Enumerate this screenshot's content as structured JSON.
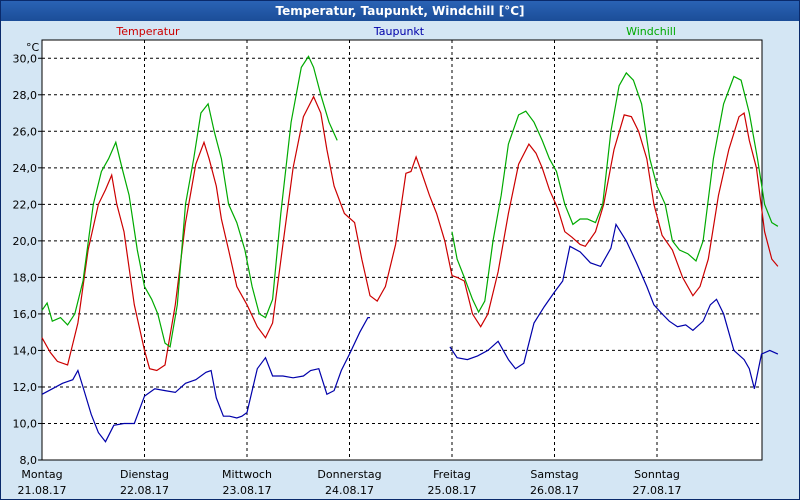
{
  "window": {
    "title": "Temperatur, Taupunkt, Windchill [°C]"
  },
  "chart_data": {
    "type": "line",
    "title": "Temperatur, Taupunkt, Windchill [°C]",
    "ylabel": "°C",
    "ylim": [
      8,
      31
    ],
    "xlim": [
      0,
      7
    ],
    "grid": true,
    "legend_position": "top",
    "yticks": [
      "8,0",
      "10,0",
      "12,0",
      "14,0",
      "16,0",
      "18,0",
      "20,0",
      "22,0",
      "24,0",
      "26,0",
      "28,0",
      "30,0"
    ],
    "xticks": [
      {
        "day": "Montag",
        "date": "21.08.17"
      },
      {
        "day": "Dienstag",
        "date": "22.08.17"
      },
      {
        "day": "Mittwoch",
        "date": "23.08.17"
      },
      {
        "day": "Donnerstag",
        "date": "24.08.17"
      },
      {
        "day": "Freitag",
        "date": "25.08.17"
      },
      {
        "day": "Samstag",
        "date": "26.08.17"
      },
      {
        "day": "Sonntag",
        "date": "27.08.17"
      }
    ],
    "series": [
      {
        "name": "Temperatur",
        "color": "#cc0000",
        "points": [
          [
            0.0,
            14.7
          ],
          [
            0.08,
            13.9
          ],
          [
            0.15,
            13.4
          ],
          [
            0.25,
            13.2
          ],
          [
            0.35,
            15.5
          ],
          [
            0.45,
            19.5
          ],
          [
            0.55,
            22.0
          ],
          [
            0.62,
            22.8
          ],
          [
            0.68,
            23.6
          ],
          [
            0.73,
            22.0
          ],
          [
            0.8,
            20.5
          ],
          [
            0.9,
            16.5
          ],
          [
            1.0,
            14.0
          ],
          [
            1.05,
            13.0
          ],
          [
            1.12,
            12.9
          ],
          [
            1.2,
            13.2
          ],
          [
            1.3,
            16.5
          ],
          [
            1.4,
            21.0
          ],
          [
            1.5,
            24.2
          ],
          [
            1.58,
            25.4
          ],
          [
            1.63,
            24.5
          ],
          [
            1.7,
            23.0
          ],
          [
            1.75,
            21.2
          ],
          [
            1.82,
            19.5
          ],
          [
            1.9,
            17.5
          ],
          [
            2.0,
            16.5
          ],
          [
            2.1,
            15.3
          ],
          [
            2.18,
            14.7
          ],
          [
            2.25,
            15.5
          ],
          [
            2.35,
            19.8
          ],
          [
            2.45,
            24.0
          ],
          [
            2.55,
            26.8
          ],
          [
            2.65,
            27.9
          ],
          [
            2.72,
            27.0
          ],
          [
            2.78,
            25.0
          ],
          [
            2.85,
            23.0
          ],
          [
            2.95,
            21.5
          ],
          [
            3.05,
            21.0
          ],
          [
            3.12,
            19.0
          ],
          [
            3.2,
            17.0
          ],
          [
            3.27,
            16.7
          ],
          [
            3.35,
            17.5
          ],
          [
            3.45,
            19.8
          ],
          [
            3.55,
            23.7
          ],
          [
            3.6,
            23.8
          ],
          [
            3.65,
            24.6
          ],
          [
            3.7,
            23.8
          ],
          [
            3.78,
            22.5
          ],
          [
            3.85,
            21.5
          ],
          [
            3.93,
            20.0
          ],
          [
            4.0,
            18.1
          ],
          [
            4.05,
            18.0
          ],
          [
            4.12,
            17.8
          ],
          [
            4.2,
            16.0
          ],
          [
            4.28,
            15.3
          ],
          [
            4.35,
            16.0
          ],
          [
            4.45,
            18.3
          ],
          [
            4.55,
            21.5
          ],
          [
            4.65,
            24.2
          ],
          [
            4.75,
            25.3
          ],
          [
            4.82,
            24.8
          ],
          [
            4.88,
            24.0
          ],
          [
            4.95,
            22.8
          ],
          [
            5.03,
            21.8
          ],
          [
            5.1,
            20.5
          ],
          [
            5.17,
            20.2
          ],
          [
            5.25,
            19.8
          ],
          [
            5.3,
            19.7
          ],
          [
            5.4,
            20.5
          ],
          [
            5.48,
            22.0
          ],
          [
            5.58,
            25.0
          ],
          [
            5.68,
            26.9
          ],
          [
            5.75,
            26.8
          ],
          [
            5.82,
            26.0
          ],
          [
            5.9,
            24.5
          ],
          [
            5.97,
            22.0
          ],
          [
            6.05,
            20.3
          ],
          [
            6.15,
            19.5
          ],
          [
            6.25,
            18.0
          ],
          [
            6.35,
            17.0
          ],
          [
            6.42,
            17.5
          ],
          [
            6.5,
            19.0
          ],
          [
            6.6,
            22.5
          ],
          [
            6.7,
            25.0
          ],
          [
            6.8,
            26.8
          ],
          [
            6.85,
            27.0
          ],
          [
            6.9,
            25.5
          ],
          [
            6.97,
            24.0
          ],
          [
            7.05,
            20.5
          ],
          [
            7.12,
            19.0
          ],
          [
            7.18,
            18.6
          ]
        ]
      },
      {
        "name": "Taupunkt",
        "color": "#0000aa",
        "points": [
          [
            0.0,
            11.6
          ],
          [
            0.1,
            11.9
          ],
          [
            0.2,
            12.2
          ],
          [
            0.3,
            12.4
          ],
          [
            0.35,
            12.9
          ],
          [
            0.4,
            12.0
          ],
          [
            0.48,
            10.5
          ],
          [
            0.55,
            9.5
          ],
          [
            0.62,
            9.0
          ],
          [
            0.7,
            9.9
          ],
          [
            0.8,
            10.0
          ],
          [
            0.9,
            10.0
          ],
          [
            1.0,
            11.5
          ],
          [
            1.1,
            11.9
          ],
          [
            1.2,
            11.8
          ],
          [
            1.3,
            11.7
          ],
          [
            1.4,
            12.2
          ],
          [
            1.5,
            12.4
          ],
          [
            1.6,
            12.8
          ],
          [
            1.65,
            12.9
          ],
          [
            1.7,
            11.4
          ],
          [
            1.77,
            10.4
          ],
          [
            1.83,
            10.4
          ],
          [
            1.9,
            10.3
          ],
          [
            1.95,
            10.4
          ],
          [
            2.0,
            10.6
          ],
          [
            2.1,
            13.0
          ],
          [
            2.18,
            13.6
          ],
          [
            2.25,
            12.6
          ],
          [
            2.35,
            12.6
          ],
          [
            2.45,
            12.5
          ],
          [
            2.55,
            12.6
          ],
          [
            2.62,
            12.9
          ],
          [
            2.7,
            13.0
          ],
          [
            2.78,
            11.6
          ],
          [
            2.85,
            11.8
          ],
          [
            2.92,
            12.9
          ],
          [
            3.0,
            13.8
          ],
          [
            3.1,
            15.0
          ],
          [
            3.18,
            15.8
          ],
          [
            3.2,
            15.8
          ],
          [
            3.98,
            14.2
          ],
          [
            4.05,
            13.6
          ],
          [
            4.15,
            13.5
          ],
          [
            4.25,
            13.7
          ],
          [
            4.35,
            14.0
          ],
          [
            4.45,
            14.5
          ],
          [
            4.55,
            13.5
          ],
          [
            4.62,
            13.0
          ],
          [
            4.7,
            13.3
          ],
          [
            4.8,
            15.5
          ],
          [
            4.9,
            16.4
          ],
          [
            5.0,
            17.2
          ],
          [
            5.08,
            17.8
          ],
          [
            5.15,
            19.7
          ],
          [
            5.25,
            19.4
          ],
          [
            5.35,
            18.8
          ],
          [
            5.45,
            18.6
          ],
          [
            5.55,
            19.6
          ],
          [
            5.6,
            20.9
          ],
          [
            5.7,
            20.0
          ],
          [
            5.8,
            18.8
          ],
          [
            5.9,
            17.5
          ],
          [
            5.97,
            16.5
          ],
          [
            6.05,
            16.0
          ],
          [
            6.12,
            15.6
          ],
          [
            6.2,
            15.3
          ],
          [
            6.28,
            15.4
          ],
          [
            6.35,
            15.1
          ],
          [
            6.45,
            15.6
          ],
          [
            6.52,
            16.5
          ],
          [
            6.58,
            16.8
          ],
          [
            6.65,
            16.0
          ],
          [
            6.75,
            14.0
          ],
          [
            6.85,
            13.5
          ],
          [
            6.9,
            13.0
          ],
          [
            6.95,
            11.9
          ],
          [
            7.02,
            13.8
          ],
          [
            7.1,
            14.0
          ],
          [
            7.18,
            13.8
          ]
        ]
      },
      {
        "name": "Windchill",
        "color": "#00aa00",
        "points": [
          [
            0.0,
            16.2
          ],
          [
            0.05,
            16.6
          ],
          [
            0.1,
            15.6
          ],
          [
            0.18,
            15.8
          ],
          [
            0.25,
            15.4
          ],
          [
            0.32,
            16.0
          ],
          [
            0.4,
            17.8
          ],
          [
            0.5,
            22.0
          ],
          [
            0.58,
            23.8
          ],
          [
            0.65,
            24.5
          ],
          [
            0.72,
            25.4
          ],
          [
            0.78,
            24.0
          ],
          [
            0.85,
            22.5
          ],
          [
            0.93,
            19.5
          ],
          [
            1.0,
            17.5
          ],
          [
            1.07,
            16.8
          ],
          [
            1.13,
            16.0
          ],
          [
            1.2,
            14.4
          ],
          [
            1.25,
            14.2
          ],
          [
            1.32,
            16.5
          ],
          [
            1.4,
            22.0
          ],
          [
            1.48,
            24.5
          ],
          [
            1.55,
            27.0
          ],
          [
            1.62,
            27.5
          ],
          [
            1.68,
            26.0
          ],
          [
            1.75,
            24.5
          ],
          [
            1.82,
            22.0
          ],
          [
            1.9,
            21.0
          ],
          [
            1.98,
            19.5
          ],
          [
            2.05,
            17.5
          ],
          [
            2.12,
            16.0
          ],
          [
            2.18,
            15.8
          ],
          [
            2.25,
            16.8
          ],
          [
            2.33,
            21.5
          ],
          [
            2.43,
            26.5
          ],
          [
            2.53,
            29.5
          ],
          [
            2.6,
            30.1
          ],
          [
            2.65,
            29.5
          ],
          [
            2.72,
            28.0
          ],
          [
            2.8,
            26.5
          ],
          [
            2.88,
            25.5
          ],
          [
            4.0,
            20.5
          ],
          [
            4.05,
            19.0
          ],
          [
            4.12,
            18.0
          ],
          [
            4.2,
            16.8
          ],
          [
            4.26,
            16.1
          ],
          [
            4.32,
            16.7
          ],
          [
            4.4,
            20.0
          ],
          [
            4.48,
            22.5
          ],
          [
            4.55,
            25.3
          ],
          [
            4.65,
            26.9
          ],
          [
            4.72,
            27.1
          ],
          [
            4.8,
            26.5
          ],
          [
            4.88,
            25.5
          ],
          [
            4.95,
            24.5
          ],
          [
            5.02,
            23.8
          ],
          [
            5.1,
            22.0
          ],
          [
            5.18,
            20.9
          ],
          [
            5.25,
            21.2
          ],
          [
            5.32,
            21.2
          ],
          [
            5.4,
            21.0
          ],
          [
            5.47,
            22.0
          ],
          [
            5.55,
            26.0
          ],
          [
            5.63,
            28.5
          ],
          [
            5.7,
            29.2
          ],
          [
            5.77,
            28.8
          ],
          [
            5.85,
            27.5
          ],
          [
            5.93,
            24.5
          ],
          [
            6.0,
            23.0
          ],
          [
            6.08,
            22.0
          ],
          [
            6.15,
            20.0
          ],
          [
            6.22,
            19.5
          ],
          [
            6.3,
            19.3
          ],
          [
            6.38,
            18.9
          ],
          [
            6.45,
            20.0
          ],
          [
            6.55,
            24.5
          ],
          [
            6.65,
            27.5
          ],
          [
            6.75,
            29.0
          ],
          [
            6.82,
            28.8
          ],
          [
            6.9,
            27.0
          ],
          [
            6.98,
            24.5
          ],
          [
            7.05,
            22.0
          ],
          [
            7.12,
            21.0
          ],
          [
            7.18,
            20.8
          ]
        ]
      }
    ]
  }
}
